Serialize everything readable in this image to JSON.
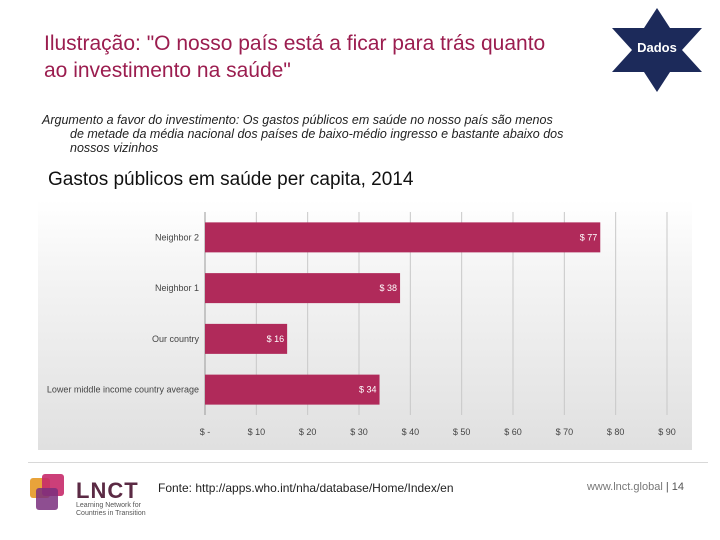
{
  "slide": {
    "title": "Ilustração: \"O nosso país está a ficar para trás quanto ao investimento na saúde\"",
    "badge": "Dados",
    "subtitle_line1": "Argumento a favor do investimento: Os gastos públicos em saúde no nosso país são menos",
    "subtitle_line2": "de metade da média nacional dos países de baixo-médio ingresso e bastante abaixo dos",
    "subtitle_line3": "nossos vizinhos"
  },
  "chart_data": {
    "type": "bar",
    "orientation": "horizontal",
    "title": "Gastos públicos em saúde per capita, 2014",
    "categories": [
      "Neighbor 2",
      "Neighbor 1",
      "Our country",
      "Lower middle income country average"
    ],
    "values": [
      77,
      38,
      16,
      34
    ],
    "value_labels": [
      "$ 77",
      "$ 38",
      "$ 16",
      "$ 34"
    ],
    "xlim": [
      0,
      90
    ],
    "x_ticks": [
      0,
      10,
      20,
      30,
      40,
      50,
      60,
      70,
      80,
      90
    ],
    "x_tick_labels": [
      "$ -",
      "$ 10",
      "$ 20",
      "$ 30",
      "$ 40",
      "$ 50",
      "$ 60",
      "$ 70",
      "$ 80",
      "$ 90"
    ],
    "xlabel": "",
    "ylabel": "",
    "gridlines": "vertical",
    "bar_color": "#b02a5a"
  },
  "footer": {
    "source": "Fonte: http://apps.who.int/nha/database/Home/Index/en",
    "site": "www.lnct.global",
    "page": "| 14",
    "logo_text": "LNCT",
    "logo_sub_1": "Learning Network for",
    "logo_sub_2": "Countries in Transition"
  }
}
